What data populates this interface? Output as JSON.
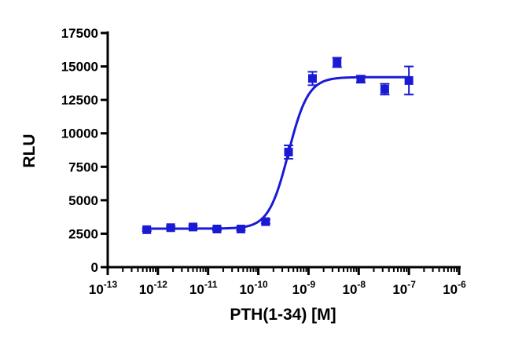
{
  "chart_data": {
    "type": "scatter",
    "xlabel": "PTH(1-34) [M]",
    "ylabel": "RLU",
    "x_scale": "log",
    "xlim": [
      1e-13,
      1e-06
    ],
    "ylim": [
      0,
      17500
    ],
    "x_ticks": [
      {
        "value": 1e-13,
        "base": "10",
        "exp": "-13"
      },
      {
        "value": 1e-12,
        "base": "10",
        "exp": "-12"
      },
      {
        "value": 1e-11,
        "base": "10",
        "exp": "-11"
      },
      {
        "value": 1e-10,
        "base": "10",
        "exp": "-10"
      },
      {
        "value": 1e-09,
        "base": "10",
        "exp": "-9"
      },
      {
        "value": 1e-08,
        "base": "10",
        "exp": "-8"
      },
      {
        "value": 1e-07,
        "base": "10",
        "exp": "-7"
      },
      {
        "value": 1e-06,
        "base": "10",
        "exp": "-6"
      }
    ],
    "y_ticks": [
      "0",
      "2500",
      "5000",
      "7500",
      "10000",
      "12500",
      "15000",
      "17500"
    ],
    "grid": false,
    "color": "#1a1ad6",
    "series": [
      {
        "points": [
          {
            "x": 6e-13,
            "y": 2800,
            "err": 100
          },
          {
            "x": 1.8e-12,
            "y": 2950,
            "err": 100
          },
          {
            "x": 5e-12,
            "y": 3000,
            "err": 100
          },
          {
            "x": 1.5e-11,
            "y": 2850,
            "err": 100
          },
          {
            "x": 4.5e-11,
            "y": 2850,
            "err": 100
          },
          {
            "x": 1.4e-10,
            "y": 3400,
            "err": 150
          },
          {
            "x": 4e-10,
            "y": 8600,
            "err": 500
          },
          {
            "x": 1.2e-09,
            "y": 14100,
            "err": 500
          },
          {
            "x": 3.7e-09,
            "y": 15300,
            "err": 350
          },
          {
            "x": 1.1e-08,
            "y": 14050,
            "err": 250
          },
          {
            "x": 3.3e-08,
            "y": 13300,
            "err": 400
          },
          {
            "x": 1e-07,
            "y": 13950,
            "err": 1050
          }
        ],
        "fit": {
          "bottom": 2880,
          "top": 14200,
          "log_ec50": -9.4,
          "hill": 2.2
        }
      }
    ]
  }
}
